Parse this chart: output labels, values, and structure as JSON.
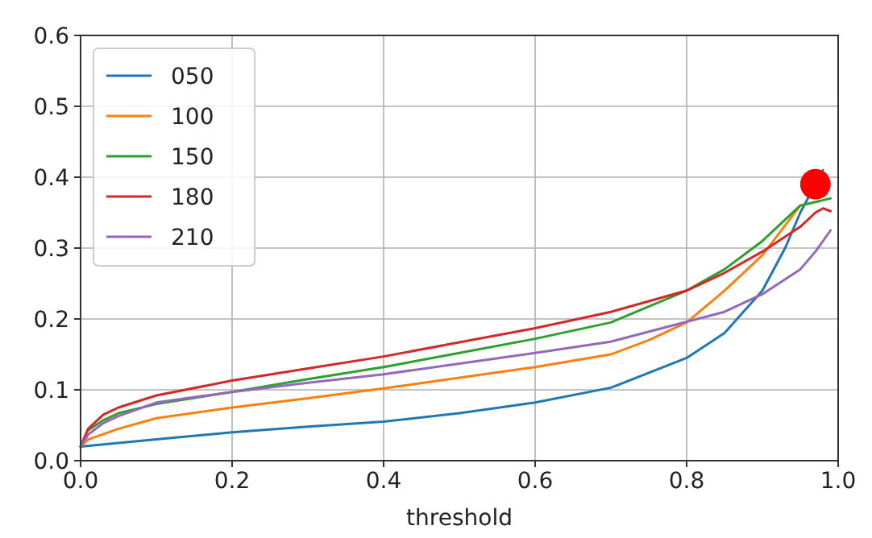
{
  "chart_data": {
    "type": "line",
    "xlabel": "threshold",
    "xlim": [
      0,
      1
    ],
    "ylim": [
      0,
      0.6
    ],
    "xticks": [
      {
        "value": 0,
        "label": "0.0"
      },
      {
        "value": 0.2,
        "label": "0.2"
      },
      {
        "value": 0.4,
        "label": "0.4"
      },
      {
        "value": 0.6,
        "label": "0.6"
      },
      {
        "value": 0.8,
        "label": "0.8"
      },
      {
        "value": 1,
        "label": "1.0"
      }
    ],
    "yticks": [
      {
        "value": 0,
        "label": "0.0"
      },
      {
        "value": 0.1,
        "label": "0.1"
      },
      {
        "value": 0.2,
        "label": "0.2"
      },
      {
        "value": 0.3,
        "label": "0.3"
      },
      {
        "value": 0.4,
        "label": "0.4"
      },
      {
        "value": 0.5,
        "label": "0.5"
      },
      {
        "value": 0.6,
        "label": "0.6"
      }
    ],
    "grid": true,
    "legend": "top left",
    "marker": "none",
    "series": [
      {
        "name": "050",
        "color": "#1f77b4",
        "x": [
          0,
          0.1,
          0.2,
          0.3,
          0.4,
          0.5,
          0.6,
          0.7,
          0.8,
          0.85,
          0.9,
          0.93,
          0.95,
          0.98
        ],
        "values": [
          0.02,
          0.03,
          0.04,
          0.048,
          0.055,
          0.067,
          0.082,
          0.103,
          0.145,
          0.18,
          0.24,
          0.3,
          0.35,
          0.41
        ]
      },
      {
        "name": "100",
        "color": "#ff7f0e",
        "x": [
          0,
          0.01,
          0.05,
          0.1,
          0.2,
          0.3,
          0.4,
          0.5,
          0.6,
          0.7,
          0.75,
          0.8,
          0.85,
          0.9,
          0.95
        ],
        "values": [
          0.02,
          0.03,
          0.045,
          0.06,
          0.075,
          0.088,
          0.102,
          0.117,
          0.132,
          0.15,
          0.17,
          0.195,
          0.24,
          0.29,
          0.36
        ]
      },
      {
        "name": "150",
        "color": "#2ca02c",
        "x": [
          0.01,
          0.03,
          0.05,
          0.1,
          0.2,
          0.3,
          0.4,
          0.5,
          0.6,
          0.7,
          0.8,
          0.85,
          0.9,
          0.95,
          0.99
        ],
        "values": [
          0.043,
          0.057,
          0.067,
          0.08,
          0.097,
          0.115,
          0.132,
          0.152,
          0.172,
          0.195,
          0.24,
          0.27,
          0.31,
          0.36,
          0.37
        ]
      },
      {
        "name": "180",
        "color": "#d62728",
        "x": [
          0,
          0.01,
          0.03,
          0.05,
          0.1,
          0.2,
          0.3,
          0.4,
          0.5,
          0.6,
          0.7,
          0.8,
          0.85,
          0.9,
          0.95,
          0.97,
          0.98,
          0.99
        ],
        "values": [
          0.02,
          0.045,
          0.065,
          0.075,
          0.092,
          0.113,
          0.13,
          0.147,
          0.167,
          0.187,
          0.21,
          0.24,
          0.265,
          0.295,
          0.33,
          0.35,
          0.356,
          0.352
        ]
      },
      {
        "name": "210",
        "color": "#9467bd",
        "x": [
          0,
          0.01,
          0.03,
          0.05,
          0.1,
          0.2,
          0.3,
          0.4,
          0.5,
          0.6,
          0.7,
          0.8,
          0.85,
          0.9,
          0.95,
          0.97,
          0.99
        ],
        "values": [
          0.02,
          0.037,
          0.053,
          0.063,
          0.082,
          0.097,
          0.11,
          0.122,
          0.137,
          0.152,
          0.168,
          0.196,
          0.21,
          0.235,
          0.27,
          0.295,
          0.325
        ]
      },
      {
        "type": "scatter",
        "color": "#ff0000",
        "marker": "circle",
        "x": [
          0.97
        ],
        "values": [
          0.39
        ]
      }
    ]
  }
}
